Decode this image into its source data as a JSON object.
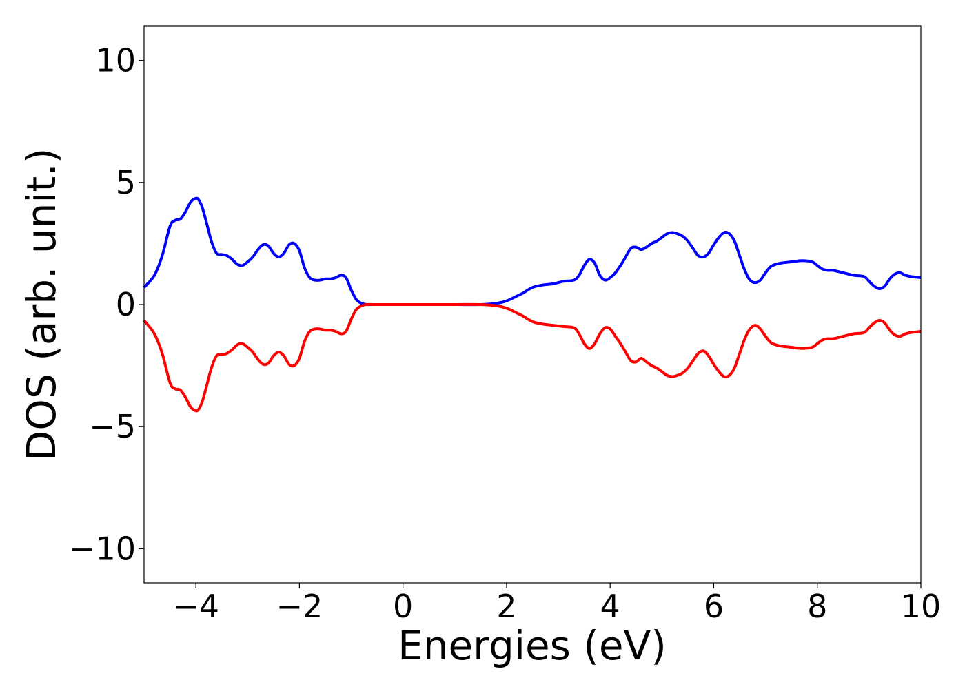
{
  "chart_data": {
    "type": "line",
    "title": "",
    "xlabel": "Energies (eV)",
    "ylabel": "DOS (arb. unit.)",
    "xlim": [
      -5,
      10
    ],
    "ylim": [
      -11.4,
      11.4
    ],
    "grid": false,
    "legend": "none",
    "xticks": [
      -4,
      -2,
      0,
      2,
      4,
      6,
      8,
      10
    ],
    "xtick_labels": [
      "−4",
      "−2",
      "0",
      "2",
      "4",
      "6",
      "8",
      "10"
    ],
    "yticks": [
      10,
      5,
      0,
      -5,
      -10
    ],
    "ytick_labels": [
      "10",
      "5",
      "0",
      "−5",
      "−10"
    ],
    "series": [
      {
        "color": "#0000ff",
        "x": [
          -5.0,
          -4.8,
          -4.65,
          -4.5,
          -4.4,
          -4.3,
          -4.2,
          -4.1,
          -4.0,
          -3.95,
          -3.88,
          -3.8,
          -3.7,
          -3.6,
          -3.5,
          -3.4,
          -3.3,
          -3.2,
          -3.1,
          -3.0,
          -2.9,
          -2.8,
          -2.7,
          -2.6,
          -2.5,
          -2.4,
          -2.3,
          -2.2,
          -2.1,
          -2.0,
          -1.9,
          -1.8,
          -1.7,
          -1.6,
          -1.5,
          -1.4,
          -1.3,
          -1.2,
          -1.1,
          -1.0,
          -0.9,
          -0.8,
          -0.7,
          -0.6,
          -0.5,
          -0.3,
          0.0,
          0.5,
          1.0,
          1.5,
          1.8,
          2.0,
          2.2,
          2.3,
          2.5,
          2.7,
          2.9,
          3.1,
          3.3,
          3.4,
          3.5,
          3.6,
          3.7,
          3.8,
          3.9,
          4.0,
          4.1,
          4.2,
          4.3,
          4.4,
          4.5,
          4.6,
          4.7,
          4.8,
          4.9,
          5.0,
          5.1,
          5.2,
          5.3,
          5.4,
          5.5,
          5.6,
          5.7,
          5.8,
          5.9,
          6.0,
          6.1,
          6.2,
          6.3,
          6.4,
          6.5,
          6.6,
          6.7,
          6.8,
          6.9,
          7.0,
          7.1,
          7.2,
          7.3,
          7.5,
          7.7,
          7.9,
          8.0,
          8.1,
          8.2,
          8.3,
          8.5,
          8.7,
          8.9,
          9.0,
          9.1,
          9.2,
          9.3,
          9.4,
          9.5,
          9.6,
          9.7,
          9.8,
          10.0
        ],
        "values": [
          0.7,
          1.2,
          2.0,
          3.2,
          3.45,
          3.5,
          3.8,
          4.2,
          4.35,
          4.3,
          4.0,
          3.4,
          2.6,
          2.1,
          2.05,
          2.0,
          1.85,
          1.65,
          1.6,
          1.75,
          1.95,
          2.25,
          2.45,
          2.4,
          2.1,
          1.95,
          2.1,
          2.45,
          2.5,
          2.2,
          1.5,
          1.1,
          1.0,
          1.0,
          1.05,
          1.05,
          1.1,
          1.2,
          1.1,
          0.6,
          0.2,
          0.05,
          0.0,
          0.0,
          0.0,
          0.0,
          0.0,
          0.0,
          0.0,
          0.0,
          0.05,
          0.15,
          0.35,
          0.45,
          0.7,
          0.8,
          0.85,
          0.95,
          1.0,
          1.2,
          1.6,
          1.85,
          1.7,
          1.2,
          1.0,
          1.1,
          1.3,
          1.6,
          1.95,
          2.3,
          2.35,
          2.25,
          2.35,
          2.5,
          2.6,
          2.75,
          2.9,
          2.95,
          2.9,
          2.8,
          2.6,
          2.3,
          2.0,
          1.95,
          2.1,
          2.45,
          2.75,
          2.95,
          2.9,
          2.6,
          2.0,
          1.4,
          1.0,
          0.9,
          1.0,
          1.3,
          1.55,
          1.65,
          1.7,
          1.75,
          1.8,
          1.75,
          1.6,
          1.45,
          1.4,
          1.4,
          1.3,
          1.2,
          1.15,
          0.95,
          0.75,
          0.65,
          0.75,
          1.05,
          1.25,
          1.3,
          1.2,
          1.15,
          1.1
        ]
      },
      {
        "color": "#ff0000",
        "x": [
          -5.0,
          -4.8,
          -4.65,
          -4.5,
          -4.4,
          -4.3,
          -4.2,
          -4.1,
          -4.0,
          -3.95,
          -3.88,
          -3.8,
          -3.7,
          -3.6,
          -3.5,
          -3.4,
          -3.3,
          -3.2,
          -3.1,
          -3.0,
          -2.9,
          -2.8,
          -2.7,
          -2.6,
          -2.5,
          -2.4,
          -2.3,
          -2.2,
          -2.1,
          -2.0,
          -1.9,
          -1.8,
          -1.7,
          -1.6,
          -1.5,
          -1.4,
          -1.3,
          -1.2,
          -1.1,
          -1.0,
          -0.9,
          -0.8,
          -0.7,
          -0.6,
          -0.5,
          -0.3,
          0.0,
          0.5,
          1.0,
          1.5,
          1.8,
          2.0,
          2.2,
          2.3,
          2.5,
          2.7,
          2.9,
          3.1,
          3.3,
          3.4,
          3.5,
          3.6,
          3.7,
          3.8,
          3.9,
          4.0,
          4.1,
          4.2,
          4.3,
          4.4,
          4.5,
          4.6,
          4.7,
          4.8,
          4.9,
          5.0,
          5.1,
          5.2,
          5.3,
          5.4,
          5.5,
          5.6,
          5.7,
          5.8,
          5.9,
          6.0,
          6.1,
          6.2,
          6.3,
          6.4,
          6.5,
          6.6,
          6.7,
          6.8,
          6.9,
          7.0,
          7.1,
          7.2,
          7.3,
          7.5,
          7.7,
          7.9,
          8.0,
          8.1,
          8.2,
          8.3,
          8.5,
          8.7,
          8.9,
          9.0,
          9.1,
          9.2,
          9.3,
          9.4,
          9.5,
          9.6,
          9.7,
          9.8,
          10.0
        ],
        "values": [
          -0.65,
          -1.2,
          -2.0,
          -3.2,
          -3.45,
          -3.5,
          -3.8,
          -4.2,
          -4.35,
          -4.3,
          -4.0,
          -3.4,
          -2.6,
          -2.1,
          -2.05,
          -2.0,
          -1.85,
          -1.65,
          -1.6,
          -1.75,
          -1.95,
          -2.25,
          -2.45,
          -2.4,
          -2.1,
          -1.95,
          -2.1,
          -2.45,
          -2.5,
          -2.2,
          -1.5,
          -1.1,
          -1.0,
          -1.0,
          -1.05,
          -1.05,
          -1.1,
          -1.2,
          -1.1,
          -0.6,
          -0.2,
          -0.05,
          0.0,
          0.0,
          0.0,
          0.0,
          0.0,
          0.0,
          0.0,
          0.0,
          -0.05,
          -0.15,
          -0.35,
          -0.45,
          -0.7,
          -0.8,
          -0.85,
          -0.9,
          -0.95,
          -1.2,
          -1.6,
          -1.8,
          -1.6,
          -1.2,
          -0.95,
          -1.0,
          -1.3,
          -1.6,
          -1.95,
          -2.3,
          -2.35,
          -2.2,
          -2.35,
          -2.5,
          -2.6,
          -2.75,
          -2.9,
          -2.95,
          -2.9,
          -2.8,
          -2.6,
          -2.3,
          -2.0,
          -1.9,
          -2.1,
          -2.45,
          -2.75,
          -2.95,
          -2.9,
          -2.6,
          -2.0,
          -1.4,
          -1.0,
          -0.85,
          -1.0,
          -1.3,
          -1.55,
          -1.65,
          -1.7,
          -1.75,
          -1.8,
          -1.75,
          -1.6,
          -1.45,
          -1.4,
          -1.4,
          -1.3,
          -1.2,
          -1.15,
          -0.95,
          -0.75,
          -0.65,
          -0.75,
          -1.05,
          -1.25,
          -1.3,
          -1.2,
          -1.15,
          -1.1
        ]
      }
    ]
  }
}
